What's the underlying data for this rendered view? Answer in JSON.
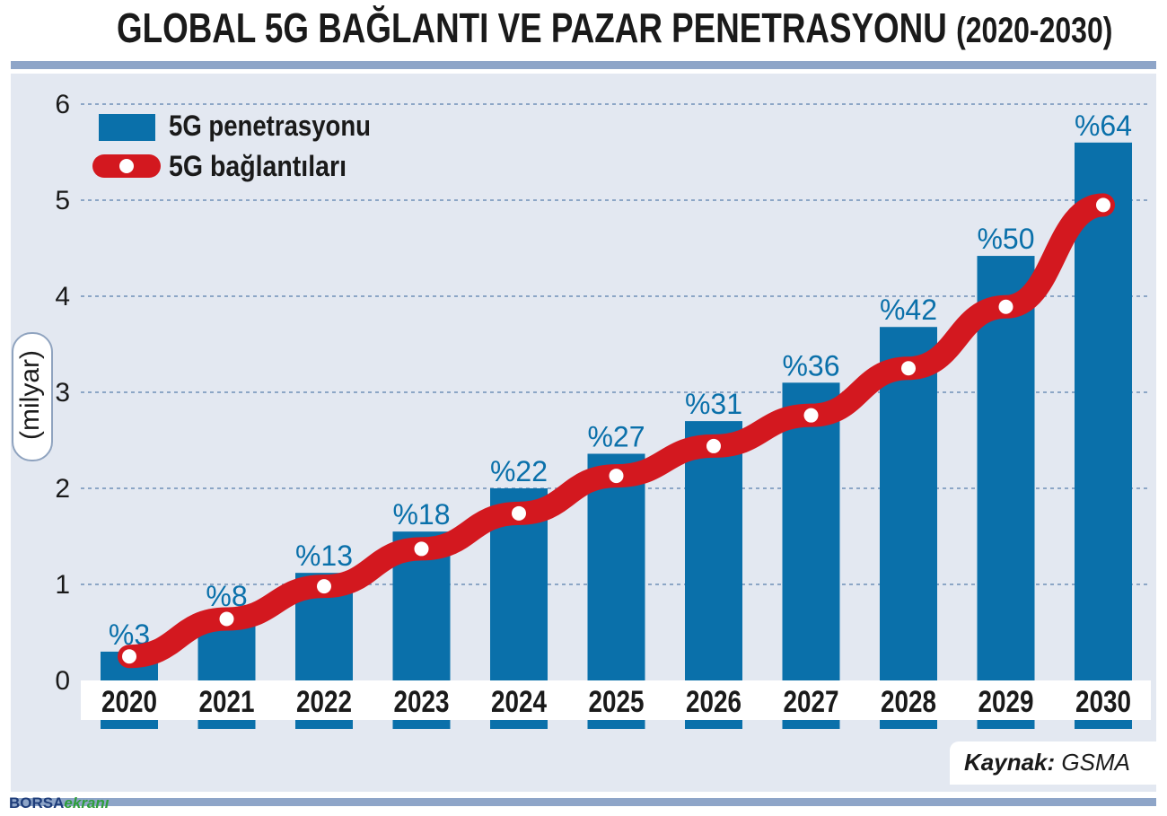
{
  "title": {
    "main": "GLOBAL 5G BAĞLANTI VE PAZAR PENETRASYONU",
    "years": "(2020-2030)"
  },
  "colors": {
    "bar": "#0a70aa",
    "line": "#d3181f",
    "label": "#0a70aa",
    "panel": "#e3e8f1",
    "rule": "#8ea5c8",
    "grid": "#6f8fb8"
  },
  "chart_data": {
    "type": "bar",
    "title": "GLOBAL 5G BAĞLANTI VE PAZAR PENETRASYONU (2020-2030)",
    "xlabel": "",
    "ylabel": "(milyar)",
    "ylim": [
      0,
      6
    ],
    "yticks": [
      "0",
      "1",
      "2",
      "3",
      "4",
      "5",
      "6"
    ],
    "grid": true,
    "legend_position": "top-left",
    "categories": [
      "2020",
      "2021",
      "2022",
      "2023",
      "2024",
      "2025",
      "2026",
      "2027",
      "2028",
      "2029",
      "2030"
    ],
    "series": [
      {
        "name": "5G penetrasyonu",
        "kind": "bar",
        "values": [
          0.3,
          0.7,
          1.12,
          1.55,
          2.0,
          2.36,
          2.7,
          3.1,
          3.68,
          4.42,
          5.6
        ],
        "labels": [
          "%3",
          "%8",
          "%13",
          "%18",
          "%22",
          "%27",
          "%31",
          "%36",
          "%42",
          "%50",
          "%64"
        ]
      },
      {
        "name": "5G bağlantıları",
        "kind": "line",
        "values": [
          0.25,
          0.64,
          0.98,
          1.37,
          1.74,
          2.13,
          2.44,
          2.76,
          3.25,
          3.89,
          4.95
        ]
      }
    ]
  },
  "source": {
    "label": "Kaynak:",
    "value": "GSMA"
  },
  "logo": {
    "part1": "BORSA",
    "part2": "ekranı"
  }
}
